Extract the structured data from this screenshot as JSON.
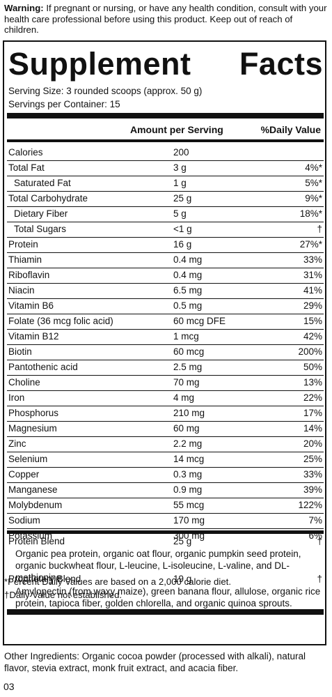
{
  "warning": {
    "label": "Warning:",
    "text": " If pregnant or nursing, or have any health condition, consult with your health care professional before using this product. Keep out of reach of children."
  },
  "title": {
    "word1": "Supplement",
    "word2": "Facts"
  },
  "serving_size": "Serving Size: 3 rounded scoops (approx. 50 g)",
  "servings_per_container": "Servings per Container: 15",
  "headers": {
    "amount": "Amount per Serving",
    "daily_value": "%Daily Value"
  },
  "nutrients": [
    {
      "name": "Calories",
      "amount": "200",
      "dv": "",
      "indent": false
    },
    {
      "name": "Total Fat",
      "amount": "3 g",
      "dv": "4%*",
      "indent": false
    },
    {
      "name": "Saturated Fat",
      "amount": "1 g",
      "dv": "5%*",
      "indent": true
    },
    {
      "name": "Total Carbohydrate",
      "amount": "25 g",
      "dv": "9%*",
      "indent": false
    },
    {
      "name": "Dietary Fiber",
      "amount": "5 g",
      "dv": "18%*",
      "indent": true
    },
    {
      "name": "Total Sugars",
      "amount": "<1 g",
      "dv": "†",
      "indent": true
    },
    {
      "name": "Protein",
      "amount": "16 g",
      "dv": "27%*",
      "indent": false
    },
    {
      "name": "Thiamin",
      "amount": "0.4 mg",
      "dv": "33%",
      "indent": false
    },
    {
      "name": "Riboflavin",
      "amount": "0.4 mg",
      "dv": "31%",
      "indent": false
    },
    {
      "name": "Niacin",
      "amount": "6.5 mg",
      "dv": "41%",
      "indent": false
    },
    {
      "name": "Vitamin B6",
      "amount": "0.5 mg",
      "dv": "29%",
      "indent": false
    },
    {
      "name": "Folate (36 mcg folic acid)",
      "amount": "60 mcg DFE",
      "dv": "15%",
      "indent": false
    },
    {
      "name": "Vitamin B12",
      "amount": "1 mcg",
      "dv": "42%",
      "indent": false
    },
    {
      "name": "Biotin",
      "amount": "60 mcg",
      "dv": "200%",
      "indent": false
    },
    {
      "name": "Pantothenic acid",
      "amount": "2.5 mg",
      "dv": "50%",
      "indent": false
    },
    {
      "name": "Choline",
      "amount": "70 mg",
      "dv": "13%",
      "indent": false
    },
    {
      "name": "Iron",
      "amount": "4 mg",
      "dv": "22%",
      "indent": false
    },
    {
      "name": "Phosphorus",
      "amount": "210 mg",
      "dv": "17%",
      "indent": false
    },
    {
      "name": "Magnesium",
      "amount": "60 mg",
      "dv": "14%",
      "indent": false
    },
    {
      "name": "Zinc",
      "amount": "2.2 mg",
      "dv": "20%",
      "indent": false
    },
    {
      "name": "Selenium",
      "amount": "14 mcg",
      "dv": "25%",
      "indent": false
    },
    {
      "name": "Copper",
      "amount": "0.3 mg",
      "dv": "33%",
      "indent": false
    },
    {
      "name": "Manganese",
      "amount": "0.9 mg",
      "dv": "39%",
      "indent": false
    },
    {
      "name": "Molybdenum",
      "amount": "55 mcg",
      "dv": "122%",
      "indent": false
    },
    {
      "name": "Sodium",
      "amount": "170 mg",
      "dv": "7%",
      "indent": false
    },
    {
      "name": "Potassium",
      "amount": "300 mg",
      "dv": "6%",
      "indent": false
    }
  ],
  "blends": [
    {
      "name": "Protein Blend",
      "amount": "25 g",
      "dv": "†",
      "ingredients": "Organic pea protein, organic oat flour, organic pumpkin seed protein, organic buckwheat flour, L-leucine, L-isoleucine, L-valine, and DL-methionine."
    },
    {
      "name": "Proprietary Blend",
      "amount": "19 g",
      "dv": "†",
      "ingredients": "Amylopectin (from waxy maize), green banana flour, allulose, organic rice protein, tapioca fiber,  golden chlorella, and organic quinoa sprouts."
    }
  ],
  "footnotes": {
    "dv_note": "*Percent Daily Values are based on a 2,000 calorie diet.",
    "dagger_note": "†Daily Value not established."
  },
  "other_ingredients": "Other Ingredients: Organic cocoa powder (processed with alkali), natural flavor, stevia extract, monk fruit extract, and acacia fiber.",
  "code": "03"
}
